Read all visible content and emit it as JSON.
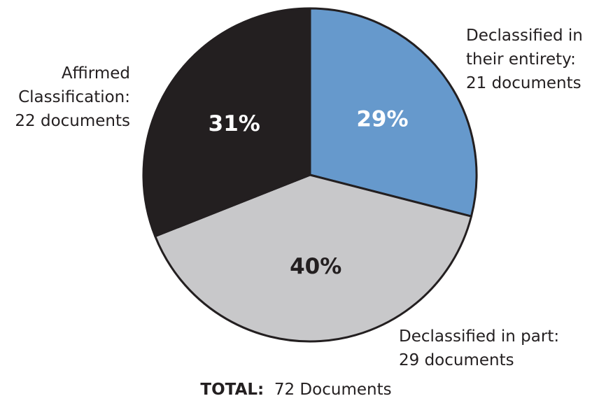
{
  "chart_data": {
    "type": "pie",
    "categories": [
      "Declassified in their entirety:",
      "Declassified in part:",
      "Affirmed Classification:"
    ],
    "category_notes": [
      "21 documents",
      "29 documents",
      "22 documents"
    ],
    "values": [
      29,
      40,
      31
    ],
    "value_labels": [
      "29%",
      "40%",
      "31%"
    ],
    "colors": [
      "#6699cc",
      "#c8c8ca",
      "#231f20"
    ],
    "label_colors": [
      "#ffffff",
      "#231f20",
      "#ffffff"
    ],
    "total_label": "TOTAL:",
    "total_text": "72 Documents"
  }
}
